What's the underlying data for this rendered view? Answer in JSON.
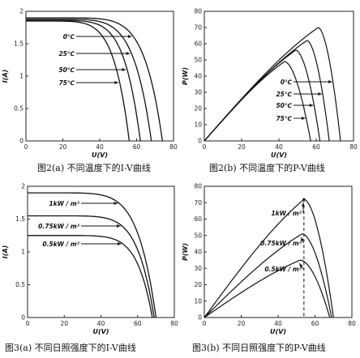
{
  "chart_data": [
    {
      "id": "a",
      "type": "line",
      "caption": "图2(a) 不同温度下的I-V曲线",
      "xlabel": "U(V)",
      "ylabel": "I(A)",
      "xlim": [
        0,
        80
      ],
      "ylim": [
        0,
        2
      ],
      "xticks": [
        "0",
        "20",
        "40",
        "60",
        "80"
      ],
      "yticks": [
        "0",
        "0.5",
        "1",
        "1.5",
        "2"
      ],
      "series": [
        {
          "name": "0℃",
          "isc": 1.9,
          "voc": 74,
          "knee": 0.86
        },
        {
          "name": "25℃",
          "isc": 1.88,
          "voc": 68,
          "knee": 0.85
        },
        {
          "name": "50℃",
          "isc": 1.86,
          "voc": 62,
          "knee": 0.85
        },
        {
          "name": "75℃",
          "isc": 1.85,
          "voc": 56,
          "knee": 0.84
        }
      ],
      "legend_style": "arrow-labels"
    },
    {
      "id": "b",
      "type": "line",
      "caption": "图2(b) 不同温度下的P-V曲线",
      "xlabel": "U(V)",
      "ylabel": "P(W)",
      "xlim": [
        0,
        80
      ],
      "ylim": [
        0,
        80
      ],
      "xticks": [
        "0",
        "20",
        "40",
        "60",
        "80"
      ],
      "yticks": [
        "0",
        "10",
        "20",
        "30",
        "40",
        "50",
        "60",
        "70",
        "80"
      ],
      "series": [
        {
          "name": "0℃",
          "pmax": 70,
          "vmp": 61,
          "voc": 73
        },
        {
          "name": "25℃",
          "pmax": 62,
          "vmp": 55,
          "voc": 67
        },
        {
          "name": "50℃",
          "pmax": 56,
          "vmp": 49,
          "voc": 62
        },
        {
          "name": "75℃",
          "pmax": 49,
          "vmp": 43,
          "voc": 57
        }
      ],
      "legend_style": "arrow-labels"
    },
    {
      "id": "c",
      "type": "line",
      "caption": "图3(a) 不同日照强度下的I-V曲线",
      "xlabel": "U(V)",
      "ylabel": "I(A)",
      "xlim": [
        0,
        80
      ],
      "ylim": [
        0,
        2
      ],
      "xticks": [
        "0",
        "20",
        "40",
        "60",
        "80"
      ],
      "yticks": [
        "0",
        "0.5",
        "1",
        "1.5",
        "2"
      ],
      "series": [
        {
          "name": "1kW / m²",
          "isc": 1.9,
          "voc": 70,
          "knee": 0.85
        },
        {
          "name": "0.75kW / m²",
          "isc": 1.55,
          "voc": 69,
          "knee": 0.86
        },
        {
          "name": "0.5kW / m²",
          "isc": 1.25,
          "voc": 68,
          "knee": 0.87
        }
      ],
      "legend_style": "arrow-labels"
    },
    {
      "id": "d",
      "type": "line",
      "caption": "图3(b) 不同日照强度下的P-V曲线",
      "xlabel": "U(V)",
      "ylabel": "P(W)",
      "xlim": [
        0,
        80
      ],
      "ylim": [
        0,
        80
      ],
      "xticks": [
        "0",
        "20",
        "40",
        "60",
        "80"
      ],
      "yticks": [
        "0",
        "10",
        "20",
        "30",
        "40",
        "50",
        "60",
        "70",
        "80"
      ],
      "series": [
        {
          "name": "1kW / m²",
          "pmax": 72,
          "vmp": 54,
          "voc": 70
        },
        {
          "name": "0.75kW / m²",
          "pmax": 51,
          "vmp": 53,
          "voc": 69
        },
        {
          "name": "0.5kW / m²",
          "pmax": 35,
          "vmp": 52,
          "voc": 68
        }
      ],
      "mpp_marker": "dashed vertical line at maximum power points",
      "legend_style": "arrow-labels"
    }
  ]
}
